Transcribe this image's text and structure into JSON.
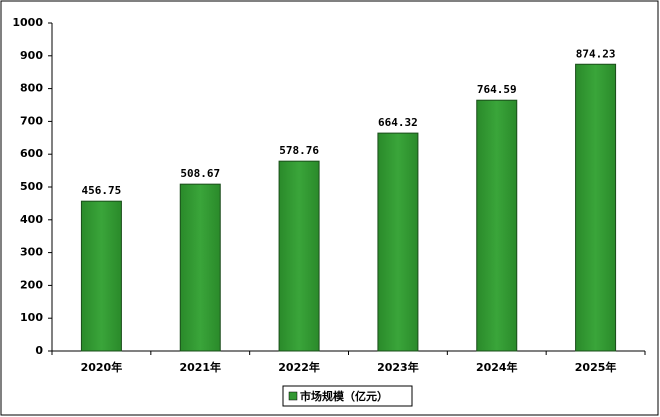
{
  "chart_data": {
    "type": "bar",
    "categories": [
      "2020年",
      "2021年",
      "2022年",
      "2023年",
      "2024年",
      "2025年"
    ],
    "series": [
      {
        "name": "市场规模（亿元）",
        "color": "#339933",
        "values": [
          456.75,
          508.67,
          578.76,
          664.32,
          764.59,
          874.23
        ]
      }
    ],
    "ylim": [
      0,
      1000
    ],
    "yticks": [
      0,
      100,
      200,
      300,
      400,
      500,
      600,
      700,
      800,
      900,
      1000
    ],
    "grid": false,
    "legend": "bottom",
    "data_labels": true
  }
}
